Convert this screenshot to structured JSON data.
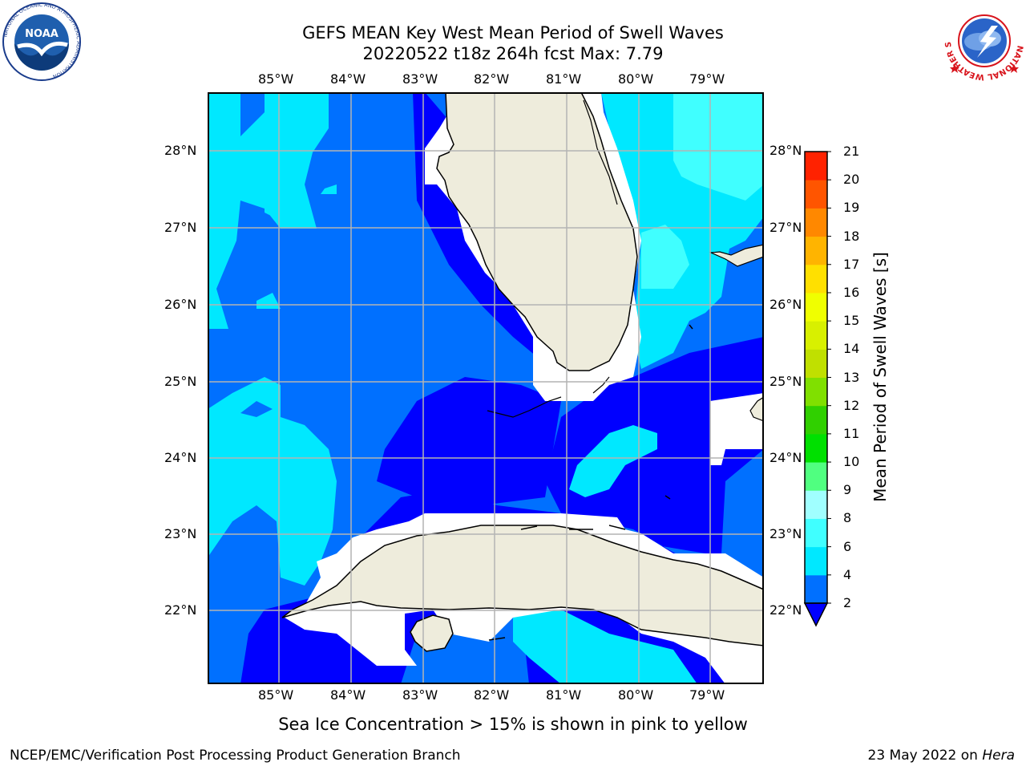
{
  "title_line1": "GEFS MEAN Key West Mean Period of Swell Waves",
  "title_line2": "20220522 t18z 264h fcst   Max: 7.79",
  "map": {
    "lon_ticks": [
      "85°W",
      "84°W",
      "83°W",
      "82°W",
      "81°W",
      "80°W",
      "79°W"
    ],
    "lat_ticks": [
      "28°N",
      "27°N",
      "26°N",
      "25°N",
      "24°N",
      "23°N",
      "22°N"
    ],
    "lon_range": [
      -86.0,
      -78.25
    ],
    "lat_range": [
      21.0,
      28.75
    ]
  },
  "colorbar": {
    "label": "Mean Period of Swell Waves [s]",
    "ticks": [
      "2",
      "4",
      "6",
      "8",
      "9",
      "10",
      "11",
      "12",
      "13",
      "14",
      "15",
      "16",
      "17",
      "18",
      "19",
      "20",
      "21"
    ],
    "colors": [
      "#0000ff",
      "#0070ff",
      "#00e8ff",
      "#40ffff",
      "#a0ffff",
      "#50ff80",
      "#00e000",
      "#30d000",
      "#80e000",
      "#c0e000",
      "#d8f000",
      "#f0ff00",
      "#ffe000",
      "#ffb400",
      "#ff8800",
      "#ff5500",
      "#ff2200",
      "#ff0000"
    ]
  },
  "note": "Sea Ice Concentration > 15% is shown in pink to yellow",
  "footer_left": "NCEP/EMC/Verification Post Processing Product Generation Branch",
  "footer_right_prefix": "23 May 2022 on ",
  "footer_right_host": "Hera",
  "logos": {
    "noaa_text": "NOAA",
    "noaa_ring": "NATIONAL OCEANIC AND ATMOSPHERIC ADMINISTRATION",
    "noaa_ring_bottom": "U.S. DEPARTMENT OF COMMERCE",
    "nws_ring": "NATIONAL WEATHER SERVICE"
  }
}
